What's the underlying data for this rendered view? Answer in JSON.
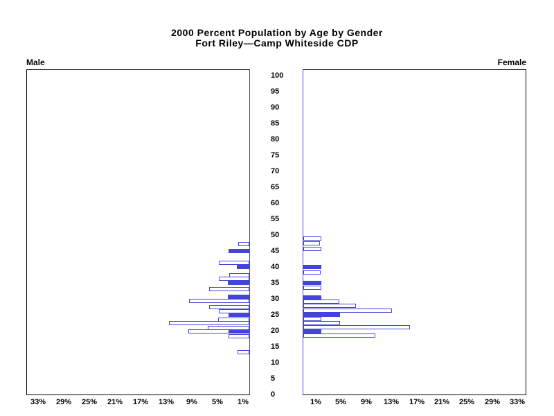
{
  "title": {
    "line1": "2000 Percent Population by Age by Gender",
    "line2": "Fort Riley—Camp Whiteside CDP"
  },
  "panels": {
    "male_label": "Male",
    "female_label": "Female"
  },
  "colors": {
    "bar_blue": "#4444dd",
    "frame_black": "#000000",
    "background": "#ffffff"
  },
  "chart_data": {
    "type": "bar",
    "subtype": "population-pyramid",
    "title": "2000 Percent Population by Age by Gender",
    "subtitle": "Fort Riley—Camp Whiteside CDP",
    "legend": "none",
    "grid": "off",
    "bar_style_note": "outline bars are white with blue border; solid bars are filled blue; solid bars sit at 5-year tick ages",
    "age_axis": {
      "min": 0,
      "max": 100,
      "tick_step": 5,
      "tick_labels": [
        "0",
        "5",
        "10",
        "15",
        "20",
        "25",
        "30",
        "35",
        "40",
        "45",
        "50",
        "55",
        "60",
        "65",
        "70",
        "75",
        "80",
        "85",
        "90",
        "95",
        "100"
      ]
    },
    "pct_axis": {
      "min": 0,
      "max": 34,
      "tick_values": [
        1,
        5,
        9,
        13,
        17,
        21,
        25,
        29,
        33
      ],
      "male_tick_labels": [
        "33%",
        "29%",
        "25%",
        "21%",
        "17%",
        "13%",
        "9%",
        "5%",
        "1%"
      ],
      "female_tick_labels": [
        "1%",
        "5%",
        "9%",
        "13%",
        "17%",
        "21%",
        "25%",
        "29%",
        "33%"
      ]
    },
    "male_bars": [
      {
        "age": 47.25,
        "value": 1.7,
        "filled": false
      },
      {
        "age": 45.0,
        "value": 3.2,
        "filled": true
      },
      {
        "age": 41.25,
        "value": 4.8,
        "filled": false
      },
      {
        "age": 40.0,
        "value": 1.9,
        "filled": true
      },
      {
        "age": 37.5,
        "value": 3.1,
        "filled": false
      },
      {
        "age": 36.25,
        "value": 4.8,
        "filled": false
      },
      {
        "age": 35.0,
        "value": 3.3,
        "filled": true
      },
      {
        "age": 33.0,
        "value": 6.3,
        "filled": false
      },
      {
        "age": 30.75,
        "value": 3.3,
        "filled": true
      },
      {
        "age": 29.25,
        "value": 9.4,
        "filled": false
      },
      {
        "age": 27.5,
        "value": 6.3,
        "filled": false
      },
      {
        "age": 26.1,
        "value": 4.8,
        "filled": false
      },
      {
        "age": 25.0,
        "value": 3.2,
        "filled": true
      },
      {
        "age": 23.5,
        "value": 4.9,
        "filled": false
      },
      {
        "age": 22.4,
        "value": 12.5,
        "filled": false
      },
      {
        "age": 20.9,
        "value": 6.5,
        "filled": false
      },
      {
        "age": 19.75,
        "value": 9.5,
        "filled": false
      },
      {
        "age": 19.75,
        "value": 3.2,
        "filled": true
      },
      {
        "age": 18.2,
        "value": 3.2,
        "filled": false
      },
      {
        "age": 13.3,
        "value": 1.8,
        "filled": false
      }
    ],
    "female_bars": [
      {
        "age": 48.9,
        "value": 2.9,
        "filled": false
      },
      {
        "age": 47.4,
        "value": 2.6,
        "filled": false
      },
      {
        "age": 45.7,
        "value": 2.9,
        "filled": false
      },
      {
        "age": 40.0,
        "value": 2.9,
        "filled": true
      },
      {
        "age": 38.2,
        "value": 2.8,
        "filled": false
      },
      {
        "age": 35.0,
        "value": 2.9,
        "filled": true
      },
      {
        "age": 33.5,
        "value": 2.9,
        "filled": false
      },
      {
        "age": 30.4,
        "value": 2.9,
        "filled": true
      },
      {
        "age": 29.1,
        "value": 5.7,
        "filled": false
      },
      {
        "age": 27.8,
        "value": 8.4,
        "filled": false
      },
      {
        "age": 26.4,
        "value": 14.1,
        "filled": false
      },
      {
        "age": 25.0,
        "value": 5.8,
        "filled": true
      },
      {
        "age": 23.7,
        "value": 2.9,
        "filled": false
      },
      {
        "age": 22.4,
        "value": 5.8,
        "filled": false
      },
      {
        "age": 21.1,
        "value": 16.9,
        "filled": false
      },
      {
        "age": 19.8,
        "value": 2.9,
        "filled": true
      },
      {
        "age": 18.5,
        "value": 11.4,
        "filled": false
      }
    ]
  }
}
